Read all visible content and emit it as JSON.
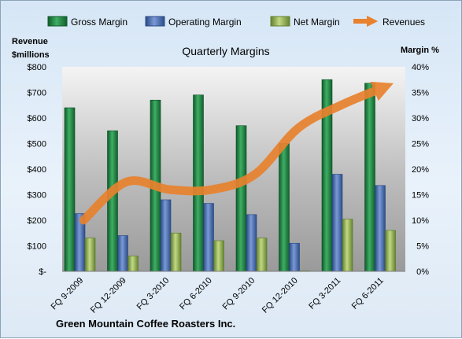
{
  "chart_data": {
    "type": "bar",
    "title": "Quarterly Margins",
    "footer": "Green Mountain Coffee Roasters Inc.",
    "left_axis_title": [
      "Revenue",
      "$millions"
    ],
    "right_axis_title": "Margin %",
    "left_ticks": [
      "$-",
      "$100",
      "$200",
      "$300",
      "$400",
      "$500",
      "$600",
      "$700",
      "$800"
    ],
    "right_ticks": [
      "0%",
      "5%",
      "10%",
      "15%",
      "20%",
      "25%",
      "30%",
      "35%",
      "40%"
    ],
    "left_ylim": [
      0,
      800
    ],
    "right_ylim": [
      0,
      40
    ],
    "categories": [
      "FQ 9-2009",
      "FQ 12-2009",
      "FQ 3-2010",
      "FQ 6-2010",
      "FQ 9-2010",
      "FQ 12-2010",
      "FQ 3-2011",
      "FQ 6-2011"
    ],
    "series": [
      {
        "name": "Gross Margin",
        "axis": "right",
        "kind": "bar",
        "color": "#1e8a46",
        "values": [
          32,
          27.5,
          33.5,
          34.5,
          28.5,
          25,
          37.5,
          36.8
        ]
      },
      {
        "name": "Operating Margin",
        "axis": "right",
        "kind": "bar",
        "color": "#4a72b8",
        "values": [
          11.3,
          7,
          14,
          13.3,
          11.1,
          5.5,
          19,
          16.8
        ]
      },
      {
        "name": "Net Margin",
        "axis": "right",
        "kind": "bar",
        "color": "#93b050",
        "values": [
          6.5,
          3,
          7.5,
          6,
          6.5,
          0.1,
          10.2,
          8
        ]
      },
      {
        "name": "Revenues",
        "axis": "left",
        "kind": "line",
        "color": "#e8822e",
        "values": [
          200,
          350,
          320,
          320,
          380,
          560,
          650,
          720
        ]
      }
    ],
    "legend_position": "top",
    "grid": false
  }
}
